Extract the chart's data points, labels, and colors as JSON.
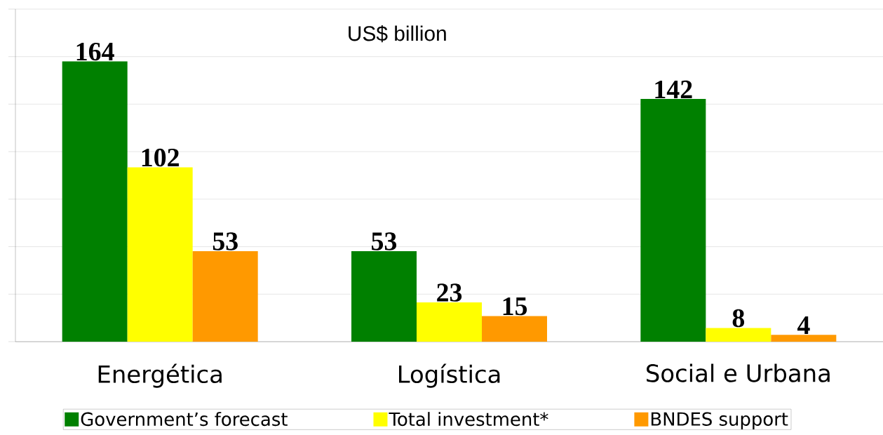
{
  "chart_data": {
    "type": "bar",
    "title": "US$ billion",
    "categories": [
      "Energética",
      "Logística",
      "Social e Urbana"
    ],
    "series": [
      {
        "name": "Government’s forecast",
        "color": "#008000",
        "values": [
          164,
          53,
          142
        ]
      },
      {
        "name": "Total investment*",
        "color": "#ffff00",
        "values": [
          102,
          23,
          8
        ]
      },
      {
        "name": "BNDES support",
        "color": "#ff9900",
        "values": [
          53,
          15,
          4
        ]
      }
    ],
    "ylim": [
      0,
      194.6
    ],
    "yticks": [
      {
        "value": 0,
        "label": null
      },
      {
        "value": 27.8,
        "label": null
      },
      {
        "value": 55.6,
        "label": null
      },
      {
        "value": 83.4,
        "label": null
      },
      {
        "value": 111.2,
        "label": null
      },
      {
        "value": 139,
        "label": null
      },
      {
        "value": 166.8,
        "label": null
      },
      {
        "value": 194.6,
        "label": null
      }
    ],
    "grid": "y",
    "data_labels": true,
    "legend": "bottom"
  }
}
